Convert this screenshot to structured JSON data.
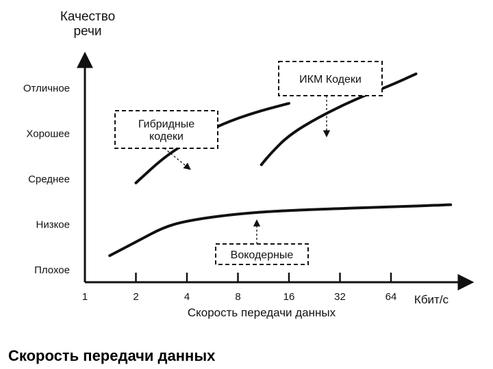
{
  "chart_data": {
    "type": "line",
    "ylabel": "Качество\nречи",
    "xlabel": "Скорость передачи данных",
    "x_unit": "Кбит/с",
    "x_ticks": [
      1,
      2,
      4,
      8,
      16,
      32,
      64
    ],
    "x_scale": "log2",
    "y_categories": [
      "Плохое",
      "Низкое",
      "Среднее",
      "Хорошее",
      "Отличное"
    ],
    "series": [
      {
        "name": "Гибридные\nкодеки",
        "points": [
          [
            2.0,
            1.9
          ],
          [
            3.0,
            2.5
          ],
          [
            4.5,
            2.9
          ],
          [
            6.5,
            3.2
          ],
          [
            10,
            3.45
          ],
          [
            16,
            3.65
          ]
        ]
      },
      {
        "name": "ИКМ Кодеки",
        "points": [
          [
            11,
            2.3
          ],
          [
            12.5,
            2.55
          ],
          [
            16,
            2.95
          ],
          [
            24,
            3.35
          ],
          [
            40,
            3.75
          ],
          [
            64,
            4.05
          ],
          [
            90,
            4.3
          ]
        ]
      },
      {
        "name": "Вокодерные",
        "points": [
          [
            1.4,
            0.3
          ],
          [
            2.0,
            0.6
          ],
          [
            3.0,
            0.95
          ],
          [
            4.5,
            1.1
          ],
          [
            8,
            1.22
          ],
          [
            16,
            1.3
          ],
          [
            64,
            1.37
          ],
          [
            144,
            1.42
          ]
        ]
      }
    ],
    "legend": "boxed-labels"
  },
  "caption": "Скорость передачи данных"
}
